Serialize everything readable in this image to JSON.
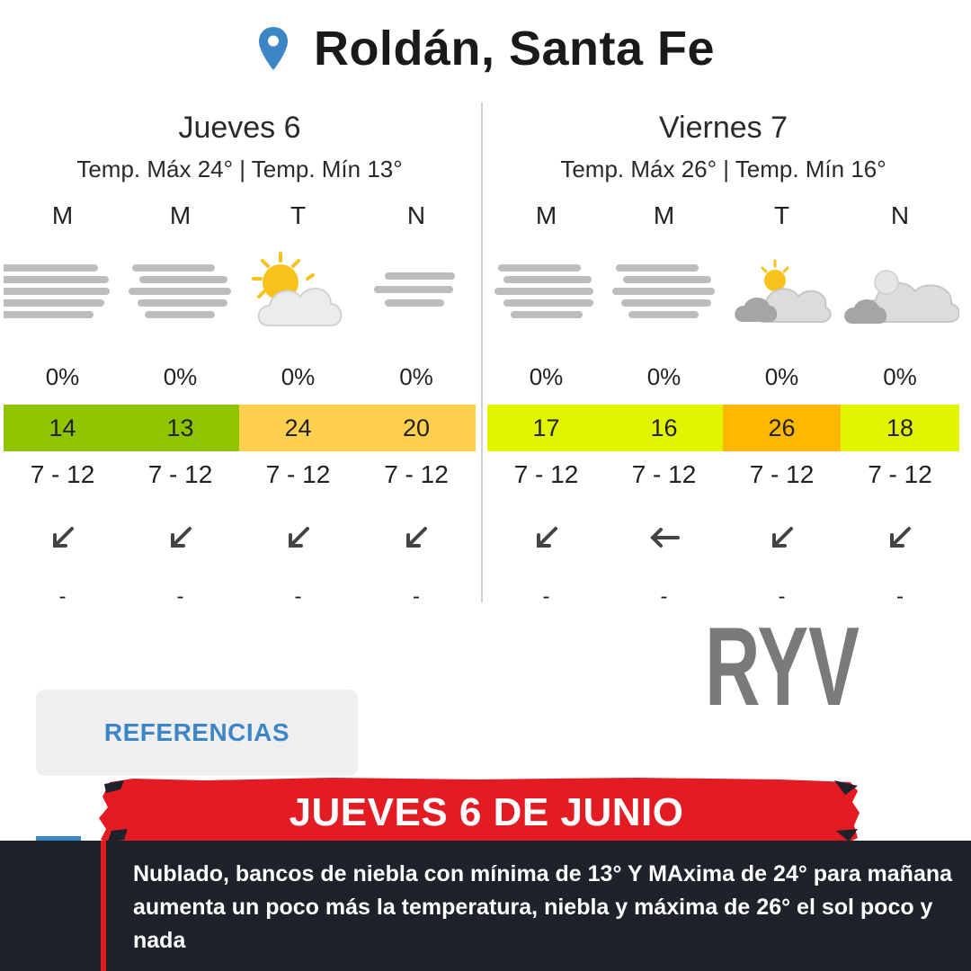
{
  "location": {
    "name": "Roldán, Santa Fe",
    "icon": "map-pin-icon",
    "icon_color": "#3d86c6"
  },
  "days": [
    {
      "title": "Jueves 6",
      "temps_line": "Temp. Máx 24° | Temp. Mín 13°",
      "periods": [
        {
          "letter": "M",
          "icon": "fog-icon",
          "precip": "0%",
          "temp": "14",
          "temp_color": "#8ec500",
          "wind": "7 - 12",
          "wind_dir": "sw-arrow-icon",
          "gust": "-"
        },
        {
          "letter": "M",
          "icon": "fog-icon",
          "precip": "0%",
          "temp": "13",
          "temp_color": "#8ec500",
          "wind": "7 - 12",
          "wind_dir": "sw-arrow-icon",
          "gust": "-"
        },
        {
          "letter": "T",
          "icon": "partly-sunny-icon",
          "precip": "0%",
          "temp": "24",
          "temp_color": "#ffd050",
          "wind": "7 - 12",
          "wind_dir": "sw-arrow-icon",
          "gust": "-"
        },
        {
          "letter": "N",
          "icon": "fog-light-icon",
          "precip": "0%",
          "temp": "20",
          "temp_color": "#ffd050",
          "wind": "7 - 12",
          "wind_dir": "sw-arrow-icon",
          "gust": "-"
        }
      ]
    },
    {
      "title": "Viernes 7",
      "temps_line": "Temp. Máx 26° | Temp. Mín 16°",
      "periods": [
        {
          "letter": "M",
          "icon": "fog-icon",
          "precip": "0%",
          "temp": "17",
          "temp_color": "#e2f500",
          "wind": "7 - 12",
          "wind_dir": "sw-arrow-icon",
          "gust": "-"
        },
        {
          "letter": "M",
          "icon": "fog-icon",
          "precip": "0%",
          "temp": "16",
          "temp_color": "#e2f500",
          "wind": "7 - 12",
          "wind_dir": "w-arrow-icon",
          "gust": "-"
        },
        {
          "letter": "T",
          "icon": "cloudy-sun-icon",
          "precip": "0%",
          "temp": "26",
          "temp_color": "#ffb800",
          "wind": "7 - 12",
          "wind_dir": "sw-arrow-icon",
          "gust": "-"
        },
        {
          "letter": "N",
          "icon": "cloudy-moon-icon",
          "precip": "0%",
          "temp": "18",
          "temp_color": "#e2f500",
          "wind": "7 - 12",
          "wind_dir": "sw-arrow-icon",
          "gust": "-"
        }
      ]
    }
  ],
  "logo": {
    "text": "RYV",
    "color": "#7a7a7a"
  },
  "references_button": {
    "label": "REFERENCIAS"
  },
  "banner": {
    "title": "JUEVES 6 DE JUNIO",
    "color": "#e31b23"
  },
  "description": "Nublado, bancos de niebla con mínima de 13° Y MAxima de 24° para mañana aumenta un poco más la temperatura,  niebla y máxima de 26° el sol poco y nada"
}
